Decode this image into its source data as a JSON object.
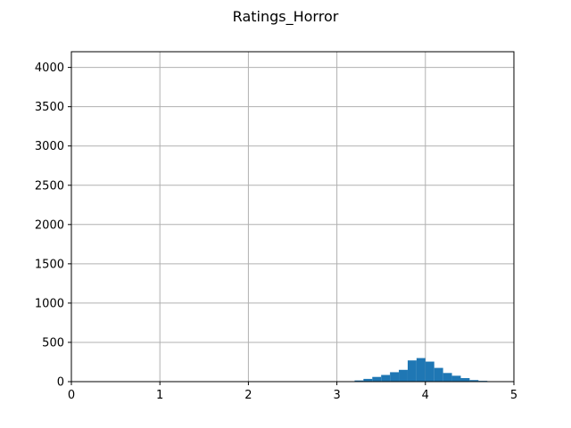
{
  "chart_data": {
    "type": "bar",
    "title": "Ratings_Horror",
    "xlabel": "",
    "ylabel": "",
    "xlim": [
      0,
      5
    ],
    "ylim": [
      0,
      4200
    ],
    "xticks": [
      "0",
      "1",
      "2",
      "3",
      "4",
      "5"
    ],
    "yticks": [
      "0",
      "500",
      "1000",
      "1500",
      "2000",
      "2500",
      "3000",
      "3500",
      "4000"
    ],
    "grid": true,
    "bar_color": "#1f77b4",
    "bins": [
      {
        "x0": 3.1,
        "x1": 3.2,
        "value": 5
      },
      {
        "x0": 3.2,
        "x1": 3.3,
        "value": 15
      },
      {
        "x0": 3.3,
        "x1": 3.4,
        "value": 35
      },
      {
        "x0": 3.4,
        "x1": 3.5,
        "value": 60
      },
      {
        "x0": 3.5,
        "x1": 3.6,
        "value": 85
      },
      {
        "x0": 3.6,
        "x1": 3.7,
        "value": 120
      },
      {
        "x0": 3.7,
        "x1": 3.8,
        "value": 150
      },
      {
        "x0": 3.8,
        "x1": 3.9,
        "value": 270
      },
      {
        "x0": 3.9,
        "x1": 4.0,
        "value": 300
      },
      {
        "x0": 4.0,
        "x1": 4.1,
        "value": 255
      },
      {
        "x0": 4.1,
        "x1": 4.2,
        "value": 175
      },
      {
        "x0": 4.2,
        "x1": 4.3,
        "value": 110
      },
      {
        "x0": 4.3,
        "x1": 4.4,
        "value": 75
      },
      {
        "x0": 4.4,
        "x1": 4.5,
        "value": 45
      },
      {
        "x0": 4.5,
        "x1": 4.6,
        "value": 20
      },
      {
        "x0": 4.6,
        "x1": 4.7,
        "value": 10
      },
      {
        "x0": 4.7,
        "x1": 4.8,
        "value": 5
      }
    ]
  }
}
